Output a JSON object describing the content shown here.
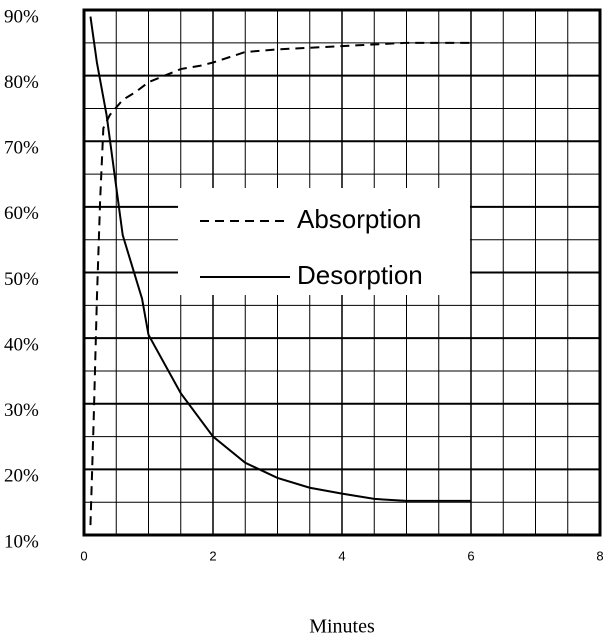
{
  "chart_data": {
    "type": "line",
    "x_label": "Minutes",
    "xlim": [
      0,
      8
    ],
    "xticks": [
      0,
      2,
      4,
      6,
      8
    ],
    "ylim": [
      10,
      90
    ],
    "yticks": [
      {
        "value": 10,
        "label": "10%"
      },
      {
        "value": 20,
        "label": "20%"
      },
      {
        "value": 30,
        "label": "30%"
      },
      {
        "value": 40,
        "label": "40%"
      },
      {
        "value": 50,
        "label": "50%"
      },
      {
        "value": 60,
        "label": "60%"
      },
      {
        "value": 70,
        "label": "70%"
      },
      {
        "value": 80,
        "label": "80%"
      },
      {
        "value": 90,
        "label": "90%"
      }
    ],
    "grid": true,
    "legend": "center",
    "series": [
      {
        "name": "Absorption",
        "color": "#000000",
        "dash": true,
        "x": [
          0.1,
          0.15,
          0.2,
          0.25,
          0.3,
          0.4,
          0.6,
          0.8,
          1.0,
          1.5,
          1.8,
          2.0,
          2.5,
          3.0,
          4.0,
          5.0,
          6.0
        ],
        "values": [
          11.5,
          27.5,
          46,
          61,
          72,
          74,
          76.3,
          77.5,
          79,
          81,
          81.5,
          82,
          83.6,
          84,
          84.5,
          85,
          85
        ]
      },
      {
        "name": "Desorption",
        "color": "#000000",
        "dash": false,
        "x": [
          0.1,
          0.2,
          0.35,
          0.6,
          0.9,
          1.0,
          1.5,
          2.0,
          2.5,
          3.0,
          3.5,
          4.0,
          4.5,
          5.0,
          6.0
        ],
        "values": [
          89,
          82,
          74,
          55.7,
          46,
          40.5,
          31.6,
          25,
          21,
          18.7,
          17.2,
          16.3,
          15.5,
          15.2,
          15.2
        ]
      }
    ]
  }
}
